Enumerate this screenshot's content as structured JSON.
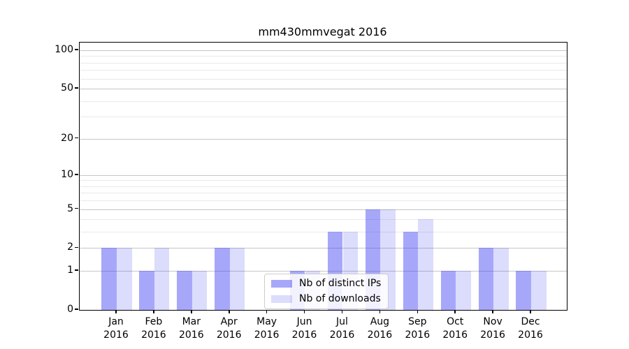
{
  "title": "mm430mmvegat 2016",
  "chart_data": {
    "type": "bar",
    "title": "mm430mmvegat 2016",
    "categories": [
      "Jan",
      "Feb",
      "Mar",
      "Apr",
      "May",
      "Jun",
      "Jul",
      "Aug",
      "Sep",
      "Oct",
      "Nov",
      "Dec"
    ],
    "year_label": "2016",
    "series": [
      {
        "name": "Nb of distinct IPs",
        "color": "rgba(60,60,245,0.45)",
        "values": [
          2,
          1,
          1,
          2,
          0,
          1,
          3,
          5,
          3,
          1,
          2,
          1
        ]
      },
      {
        "name": "Nb of downloads",
        "color": "rgba(60,60,245,0.18)",
        "values": [
          2,
          2,
          1,
          2,
          0,
          1,
          3,
          5,
          4,
          1,
          2,
          1
        ]
      }
    ],
    "y_axis": {
      "scale": "log10(value+1)",
      "major_ticks": [
        100,
        50,
        20,
        10,
        5,
        2,
        1,
        0
      ],
      "minor_gridlines": [
        3,
        4,
        6,
        7,
        8,
        9,
        30,
        40,
        60,
        70,
        80,
        90
      ],
      "ylim": [
        0,
        115
      ]
    },
    "legend": {
      "entries": [
        "Nb of distinct IPs",
        "Nb of downloads"
      ],
      "position": "lower-center"
    },
    "grid": true,
    "xlabel": "",
    "ylabel": ""
  },
  "colors": {
    "bar_distinct_ips": "rgba(60,60,245,0.45)",
    "bar_downloads": "rgba(60,60,245,0.18)",
    "grid_major": "#c6c6c6",
    "grid_minor": "#e9e9e9",
    "axis": "#000000",
    "background": "#ffffff"
  }
}
